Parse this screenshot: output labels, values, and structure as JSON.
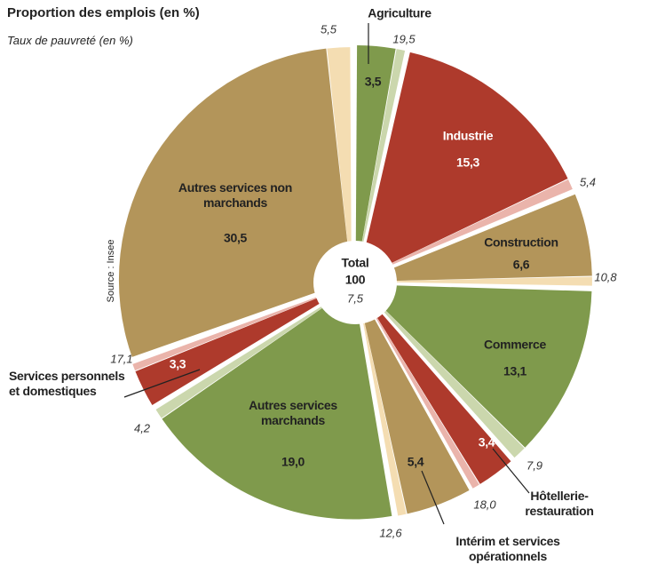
{
  "chart_data": {
    "type": "pie",
    "title": "Proportion des emplois (en %)",
    "subtitle": "Taux de pauvreté (en %)",
    "source": "Source : Insee",
    "categories": [
      "Agriculture",
      "Industrie",
      "Construction",
      "Commerce",
      "Hôtellerie-restauration",
      "Intérim et services opérationnels",
      "Autres services marchands",
      "Services personnels et domestiques",
      "Autres services non marchands"
    ],
    "values": [
      3.5,
      15.3,
      6.6,
      13.1,
      3.4,
      5.4,
      19.0,
      3.3,
      30.5
    ],
    "value_labels": [
      "3,5",
      "15,3",
      "6,6",
      "13,1",
      "3,4",
      "5,4",
      "19,0",
      "3,3",
      "30,5"
    ],
    "colors": [
      "#7f9a4c",
      "#ae3a2c",
      "#b3955a",
      "#7f9a4c",
      "#ae3a2c",
      "#b3955a",
      "#7f9a4c",
      "#ae3a2c",
      "#b3955a"
    ],
    "poverty_values": [
      19.5,
      5.4,
      10.8,
      7.9,
      18.0,
      12.6,
      4.2,
      17.1,
      5.5
    ],
    "poverty_labels": [
      "19,5",
      "5,4",
      "10,8",
      "7,9",
      "18,0",
      "12,6",
      "4,2",
      "17,1",
      "5,5"
    ],
    "poverty_colors": [
      "#cbd7ad",
      "#eab4ab",
      "#f4ddb2",
      "#cbd7ad",
      "#eab4ab",
      "#f4ddb2",
      "#cbd7ad",
      "#eab4ab",
      "#f4ddb2"
    ],
    "total_label": "Total",
    "total": 100,
    "total_poverty": {
      "value": 7.5,
      "label": "7,5"
    }
  }
}
